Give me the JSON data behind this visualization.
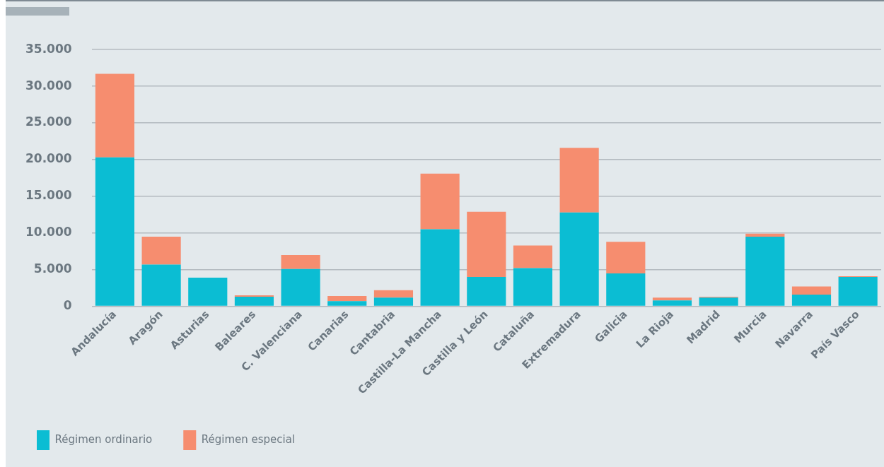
{
  "chart_data": {
    "type": "bar",
    "stacked": true,
    "categories": [
      "Andalucía",
      "Aragón",
      "Asturias",
      "Baleares",
      "C. Valenciana",
      "Canarias",
      "Cantabria",
      "Castilla-La Mancha",
      "Castilla y León",
      "Cataluña",
      "Extremadura",
      "Galicia",
      "La Rioja",
      "Madrid",
      "Murcia",
      "Navarra",
      "País Vasco"
    ],
    "series": [
      {
        "name": "Régimen ordinario",
        "color": "#0bbdd3",
        "values": [
          20300,
          5700,
          3900,
          1300,
          5100,
          700,
          1200,
          10500,
          4000,
          5200,
          12800,
          4500,
          800,
          1200,
          9500,
          1600,
          4000
        ]
      },
      {
        "name": "Régimen especial",
        "color": "#f68d6f",
        "values": [
          11400,
          3800,
          0,
          200,
          1900,
          700,
          1000,
          7600,
          8900,
          3100,
          8800,
          4300,
          400,
          100,
          400,
          1100,
          100
        ]
      }
    ],
    "ylim": [
      0,
      35000
    ],
    "yticks": [
      {
        "value": 0,
        "label": "0"
      },
      {
        "value": 5000,
        "label": "5.000"
      },
      {
        "value": 10000,
        "label": "10.000"
      },
      {
        "value": 15000,
        "label": "15.000"
      },
      {
        "value": 20000,
        "label": "20.000"
      },
      {
        "value": 25000,
        "label": "25.000"
      },
      {
        "value": 30000,
        "label": "30.000"
      },
      {
        "value": 35000,
        "label": "35.000"
      }
    ],
    "grid": "y",
    "legend": "bottom left"
  }
}
